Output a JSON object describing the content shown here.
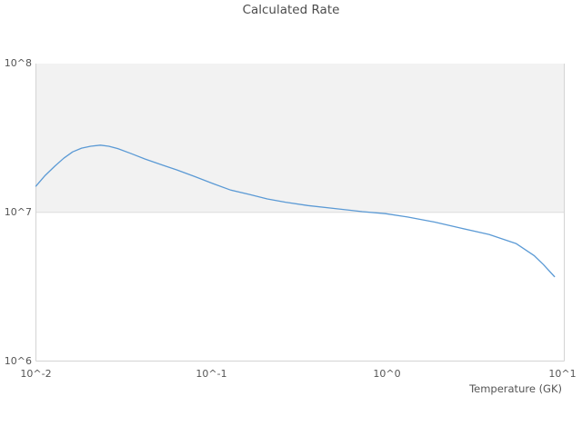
{
  "header": {
    "title": "Calculated Rate"
  },
  "colors": {
    "line": "#5b9ad5",
    "band_fill": "#f2f2f2",
    "axis_line": "#d4d4d4",
    "gridline": "#dcdcdc",
    "title_text": "#4c4c4c",
    "tick_text": "#555555",
    "background": "#ffffff"
  },
  "chart_data": {
    "type": "line",
    "title": "Calculated Rate",
    "xlabel": "Temperature (GK)",
    "ylabel": "",
    "x_scale": "log",
    "y_scale": "log",
    "xlim": [
      0.01,
      10
    ],
    "ylim": [
      1000000,
      100000000
    ],
    "grid": "off",
    "legend": "none",
    "shaded_band": {
      "from": 10000000,
      "to": 100000000,
      "color": "#f2f2f2"
    },
    "x_ticks": [
      {
        "value": 0.01,
        "label": "10^-2"
      },
      {
        "value": 0.1,
        "label": "10^-1"
      },
      {
        "value": 1,
        "label": "10^0"
      },
      {
        "value": 10,
        "label": "10^1"
      }
    ],
    "y_ticks": [
      {
        "value": 1000000,
        "label": "10^6"
      },
      {
        "value": 10000000,
        "label": "10^7"
      },
      {
        "value": 100000000,
        "label": "10^8"
      }
    ],
    "series": [
      {
        "name": "Calculated Rate",
        "color": "#5b9ad5",
        "x": [
          0.01,
          0.0113,
          0.0128,
          0.0144,
          0.0162,
          0.0182,
          0.0205,
          0.0233,
          0.026,
          0.0293,
          0.035,
          0.0419,
          0.0531,
          0.0634,
          0.0804,
          0.102,
          0.129,
          0.164,
          0.208,
          0.264,
          0.355,
          0.507,
          0.724,
          0.98,
          1.31,
          1.87,
          2.67,
          3.82,
          5.46,
          6.92,
          7.79,
          9.0
        ],
        "y": [
          15000000,
          17700000,
          20400000,
          23100000,
          25500000,
          27000000,
          27800000,
          28300000,
          27800000,
          26800000,
          24800000,
          22800000,
          20700000,
          19300000,
          17400000,
          15600000,
          14100000,
          13200000,
          12300000,
          11700000,
          11100000,
          10600000,
          10100000,
          9800000,
          9300000,
          8600000,
          7800000,
          7100000,
          6150000,
          5100000,
          4450000,
          3700000
        ]
      }
    ]
  }
}
